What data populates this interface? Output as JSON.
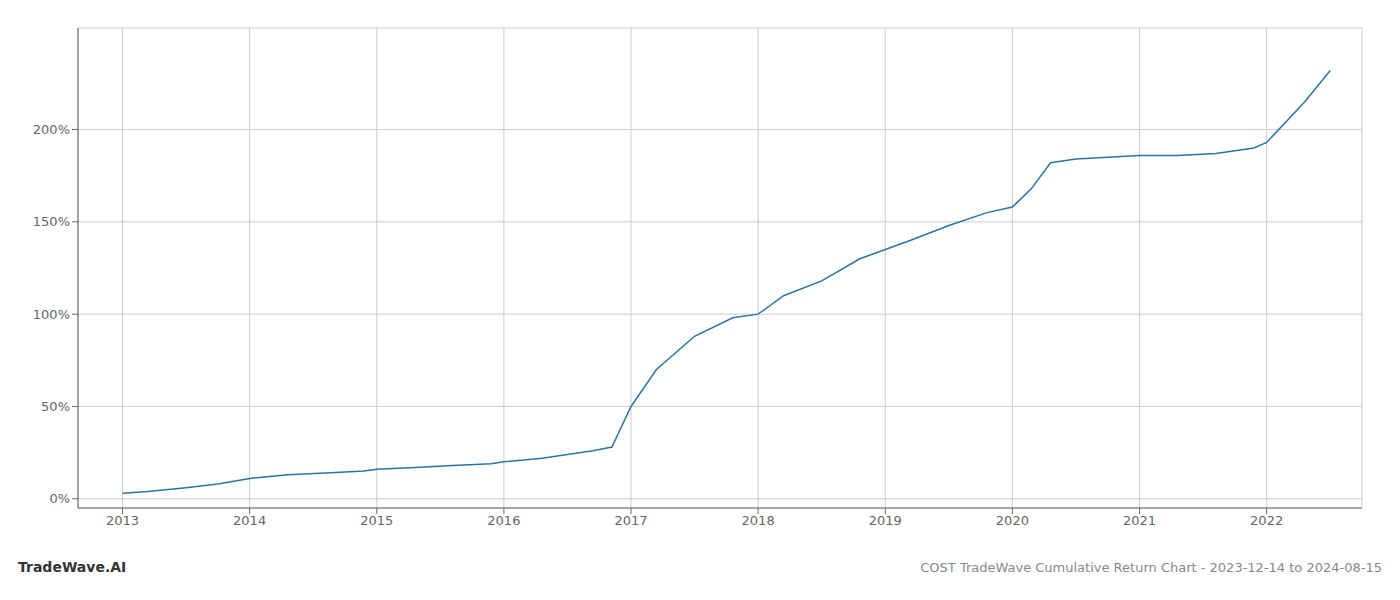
{
  "chart_data": {
    "type": "line",
    "title": "COST TradeWave Cumulative Return Chart - 2023-12-14 to 2024-08-15",
    "annotations": [
      "TradeWave.AI"
    ],
    "x": [
      2013.0,
      2013.2,
      2013.5,
      2013.75,
      2014.0,
      2014.3,
      2014.6,
      2014.9,
      2015.0,
      2015.3,
      2015.6,
      2015.9,
      2016.0,
      2016.3,
      2016.5,
      2016.7,
      2016.85,
      2017.0,
      2017.2,
      2017.5,
      2017.8,
      2018.0,
      2018.2,
      2018.5,
      2018.8,
      2019.0,
      2019.2,
      2019.5,
      2019.8,
      2020.0,
      2020.15,
      2020.3,
      2020.5,
      2020.75,
      2021.0,
      2021.3,
      2021.6,
      2021.9,
      2022.0,
      2022.3,
      2022.5
    ],
    "values": [
      3,
      4,
      6,
      8,
      11,
      13,
      14,
      15,
      16,
      17,
      18,
      19,
      20,
      22,
      24,
      26,
      28,
      50,
      70,
      88,
      98,
      100,
      110,
      118,
      130,
      135,
      140,
      148,
      155,
      158,
      168,
      182,
      184,
      185,
      186,
      186,
      187,
      190,
      193,
      215,
      232
    ],
    "color": "#2874a6",
    "xlim": [
      2012.65,
      2022.75
    ],
    "xticks": [
      2013,
      2014,
      2015,
      2016,
      2017,
      2018,
      2019,
      2020,
      2021,
      2022
    ],
    "ylim": [
      -5,
      255
    ],
    "yticks": [
      {
        "value": 0,
        "label": "0%"
      },
      {
        "value": 50,
        "label": "50%"
      },
      {
        "value": 100,
        "label": "100%"
      },
      {
        "value": 150,
        "label": "150%"
      },
      {
        "value": 200,
        "label": "200%"
      }
    ],
    "grid": true
  }
}
